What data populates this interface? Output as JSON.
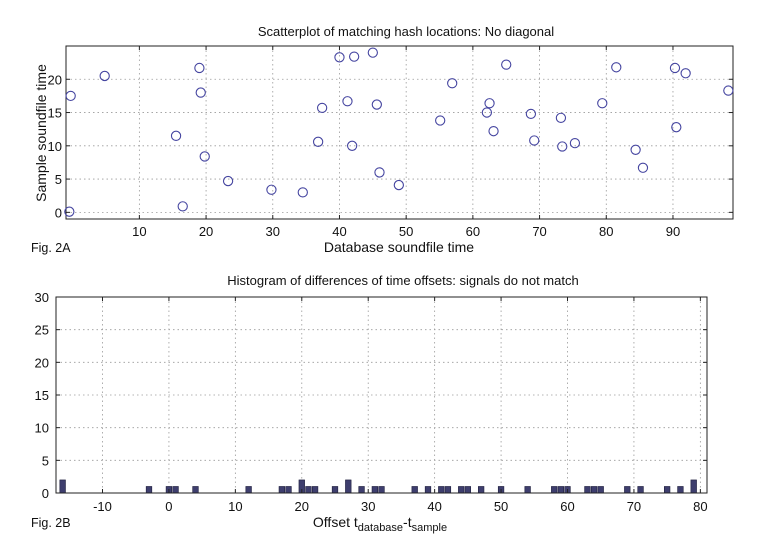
{
  "chart_data": [
    {
      "type": "scatter",
      "title": "Scatterplot of matching hash locations:  No diagonal",
      "xlabel": "Database soundfile time",
      "ylabel": "Sample soundfile time",
      "fig_label": "Fig. 2A",
      "xlim": [
        -1,
        99
      ],
      "ylim": [
        -1,
        25
      ],
      "xticks": [
        10,
        20,
        30,
        40,
        50,
        60,
        70,
        80,
        90
      ],
      "yticks": [
        0,
        5,
        10,
        15,
        20
      ],
      "grid": true,
      "marker_color": "#4545a0",
      "points": [
        {
          "x": -0.5,
          "y": 0.1
        },
        {
          "x": -0.3,
          "y": 17.5
        },
        {
          "x": 4.8,
          "y": 20.5
        },
        {
          "x": 15.5,
          "y": 11.5
        },
        {
          "x": 16.5,
          "y": 0.9
        },
        {
          "x": 19.0,
          "y": 21.7
        },
        {
          "x": 19.2,
          "y": 18.0
        },
        {
          "x": 19.8,
          "y": 8.4
        },
        {
          "x": 23.3,
          "y": 4.7
        },
        {
          "x": 29.8,
          "y": 3.4
        },
        {
          "x": 34.5,
          "y": 3.0
        },
        {
          "x": 36.8,
          "y": 10.6
        },
        {
          "x": 37.4,
          "y": 15.7
        },
        {
          "x": 40.0,
          "y": 23.3
        },
        {
          "x": 41.2,
          "y": 16.7
        },
        {
          "x": 41.9,
          "y": 10.0
        },
        {
          "x": 42.2,
          "y": 23.4
        },
        {
          "x": 45.0,
          "y": 24.0
        },
        {
          "x": 45.6,
          "y": 16.2
        },
        {
          "x": 46.0,
          "y": 6.0
        },
        {
          "x": 48.9,
          "y": 4.1
        },
        {
          "x": 55.1,
          "y": 13.8
        },
        {
          "x": 56.9,
          "y": 19.4
        },
        {
          "x": 62.1,
          "y": 15.0
        },
        {
          "x": 62.5,
          "y": 16.4
        },
        {
          "x": 63.1,
          "y": 12.2
        },
        {
          "x": 65.0,
          "y": 22.2
        },
        {
          "x": 68.7,
          "y": 14.8
        },
        {
          "x": 69.2,
          "y": 10.8
        },
        {
          "x": 73.2,
          "y": 14.2
        },
        {
          "x": 73.4,
          "y": 9.9
        },
        {
          "x": 75.3,
          "y": 10.4
        },
        {
          "x": 79.4,
          "y": 16.4
        },
        {
          "x": 81.5,
          "y": 21.8
        },
        {
          "x": 84.4,
          "y": 9.4
        },
        {
          "x": 85.5,
          "y": 6.7
        },
        {
          "x": 90.3,
          "y": 21.7
        },
        {
          "x": 90.5,
          "y": 12.8
        },
        {
          "x": 91.9,
          "y": 20.9
        },
        {
          "x": 98.3,
          "y": 18.3
        }
      ]
    },
    {
      "type": "bar",
      "title": "Histogram of differences of time offsets: signals do not match",
      "xlabel": "Offset t",
      "xlabel_sub1": "database",
      "xlabel_mid": "-t",
      "xlabel_sub2": "sample",
      "ylabel": "",
      "fig_label": "Fig. 2B",
      "xlim": [
        -17,
        81
      ],
      "ylim": [
        0,
        30
      ],
      "xticks": [
        -10,
        0,
        10,
        20,
        30,
        40,
        50,
        60,
        70,
        80
      ],
      "yticks": [
        0,
        5,
        10,
        15,
        20,
        25,
        30
      ],
      "grid": true,
      "bar_color": "#3e3e6e",
      "x": [
        -16,
        -3,
        0,
        1,
        4,
        12,
        17,
        18,
        20,
        21,
        22,
        25,
        27,
        29,
        31,
        32,
        37,
        39,
        41,
        42,
        44,
        45,
        47,
        50,
        54,
        58,
        59,
        60,
        63,
        64,
        65,
        69,
        71,
        75,
        77,
        79
      ],
      "values": [
        2,
        1,
        1,
        1,
        1,
        1,
        1,
        1,
        2,
        1,
        1,
        1,
        2,
        1,
        1,
        1,
        1,
        1,
        1,
        1,
        1,
        1,
        1,
        1,
        1,
        1,
        1,
        1,
        1,
        1,
        1,
        1,
        1,
        1,
        1,
        2
      ]
    }
  ]
}
